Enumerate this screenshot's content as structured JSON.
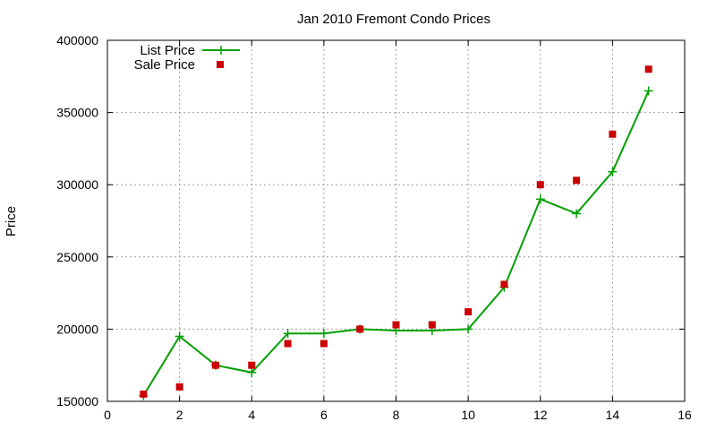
{
  "chart_data": {
    "type": "line",
    "title": "Jan 2010 Fremont Condo Prices",
    "xlabel": "",
    "ylabel": "Price",
    "xlim": [
      0,
      16
    ],
    "ylim": [
      150000,
      400000
    ],
    "xticks": [
      0,
      2,
      4,
      6,
      8,
      10,
      12,
      14,
      16
    ],
    "yticks": [
      150000,
      200000,
      250000,
      300000,
      350000,
      400000
    ],
    "grid": true,
    "legend_position": "top-left",
    "series": [
      {
        "name": "List Price",
        "style": "linespoints",
        "marker": "plus",
        "color": "#00a000",
        "x": [
          1,
          2,
          3,
          4,
          5,
          6,
          7,
          8,
          9,
          10,
          11,
          12,
          13,
          14,
          15
        ],
        "y": [
          154000,
          195000,
          175000,
          170000,
          197000,
          197000,
          200000,
          199000,
          199000,
          200000,
          229000,
          290000,
          280000,
          309000,
          365000
        ]
      },
      {
        "name": "Sale Price",
        "style": "points",
        "marker": "square",
        "color": "#cc0000",
        "x": [
          1,
          2,
          3,
          4,
          5,
          6,
          7,
          8,
          9,
          10,
          11,
          12,
          13,
          14,
          15
        ],
        "y": [
          155000,
          160000,
          175000,
          175000,
          190000,
          190000,
          200000,
          203000,
          203000,
          212000,
          231000,
          300000,
          303000,
          335000,
          380000
        ]
      }
    ]
  }
}
